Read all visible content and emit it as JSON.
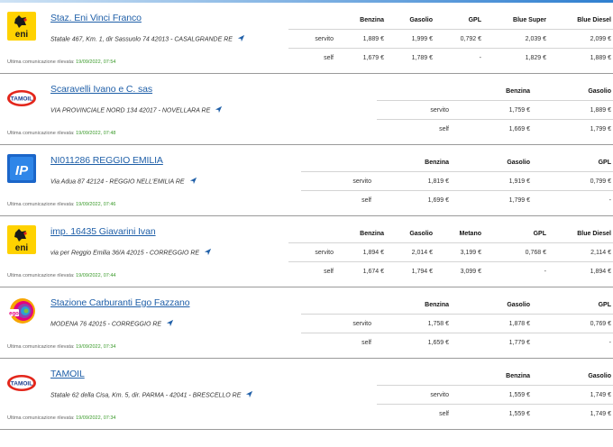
{
  "colors": {
    "link": "#1f5fa8",
    "timestamp": "#3a9a2a",
    "divider": "#9a9a9a"
  },
  "last_update_label": "Ultima comunicazione rilevata:",
  "stations": [
    {
      "brand": "eni",
      "logo_icon": "eni-dog-logo-icon",
      "name": "Staz. Eni Vinci Franco",
      "address": "Statale 467, Km. 1, dir Sassuolo 74 42013 - CASALGRANDE RE",
      "timestamp": "19/09/2022, 07:54",
      "headers": [
        "Benzina",
        "Gasolio",
        "GPL",
        "Blue Super",
        "Blue Diesel"
      ],
      "rows": [
        {
          "label": "servito",
          "values": [
            "1,889 €",
            "1,999 €",
            "0,792 €",
            "2,039 €",
            "2,099 €"
          ]
        },
        {
          "label": "self",
          "values": [
            "1,679 €",
            "1,789 €",
            "-",
            "1,829 €",
            "1,889 €"
          ]
        }
      ]
    },
    {
      "brand": "tamoil",
      "logo_icon": "tamoil-logo-icon",
      "name": "Scaravelli Ivano e C. sas",
      "address": "VIA PROVINCIALE NORD 134 42017 - NOVELLARA RE",
      "timestamp": "19/09/2022, 07:48",
      "headers": [
        "Benzina",
        "Gasolio"
      ],
      "rows": [
        {
          "label": "servito",
          "values": [
            "1,759 €",
            "1,889 €"
          ]
        },
        {
          "label": "self",
          "values": [
            "1,669 €",
            "1,799 €"
          ]
        }
      ]
    },
    {
      "brand": "ip",
      "logo_icon": "ip-logo-icon",
      "name": "NI011286 REGGIO EMILIA",
      "address": "Via Adua 87 42124 - REGGIO NELL'EMILIA RE",
      "timestamp": "19/09/2022, 07:46",
      "headers": [
        "Benzina",
        "Gasolio",
        "GPL"
      ],
      "rows": [
        {
          "label": "servito",
          "values": [
            "1,819 €",
            "1,919 €",
            "0,799 €"
          ]
        },
        {
          "label": "self",
          "values": [
            "1,699 €",
            "1,799 €",
            "-"
          ]
        }
      ]
    },
    {
      "brand": "eni",
      "logo_icon": "eni-dog-logo-icon",
      "name": "imp. 16435 Giavarini Ivan",
      "address": "via per Reggio Emilia 36/A 42015 - CORREGGIO RE",
      "timestamp": "19/09/2022, 07:44",
      "headers": [
        "Benzina",
        "Gasolio",
        "Metano",
        "GPL",
        "Blue Diesel"
      ],
      "rows": [
        {
          "label": "servito",
          "values": [
            "1,894 €",
            "2,014 €",
            "3,199 €",
            "0,768 €",
            "2,114 €"
          ]
        },
        {
          "label": "self",
          "values": [
            "1,674 €",
            "1,794 €",
            "3,099 €",
            "-",
            "1,894 €"
          ]
        }
      ]
    },
    {
      "brand": "ego",
      "logo_icon": "ego-logo-icon",
      "name": "Stazione Carburanti Ego Fazzano",
      "address": "MODENA 76 42015 - CORREGGIO RE",
      "timestamp": "19/09/2022, 07:34",
      "headers": [
        "Benzina",
        "Gasolio",
        "GPL"
      ],
      "rows": [
        {
          "label": "servito",
          "values": [
            "1,758 €",
            "1,878 €",
            "0,769 €"
          ]
        },
        {
          "label": "self",
          "values": [
            "1,659 €",
            "1,779 €",
            "-"
          ]
        }
      ]
    },
    {
      "brand": "tamoil",
      "logo_icon": "tamoil-logo-icon",
      "name": "TAMOIL",
      "address": "Statale 62 della Cisa, Km. 5, dir. PARMA - 42041 - BRESCELLO RE",
      "timestamp": "19/09/2022, 07:34",
      "headers": [
        "Benzina",
        "Gasolio"
      ],
      "rows": [
        {
          "label": "servito",
          "values": [
            "1,559 €",
            "1,749 €"
          ]
        },
        {
          "label": "self",
          "values": [
            "1,559 €",
            "1,749 €"
          ]
        }
      ]
    }
  ]
}
